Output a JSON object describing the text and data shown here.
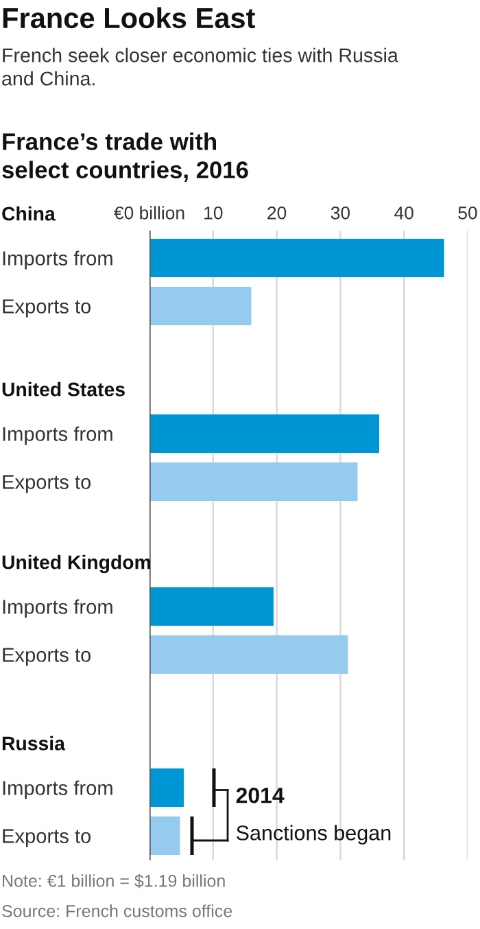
{
  "chart_data": [
    {
      "type": "bar",
      "orientation": "horizontal",
      "title": "China",
      "categories": [
        "Imports from",
        "Exports to"
      ],
      "values": [
        46.3,
        16.0
      ],
      "colors": [
        "#0096d6",
        "#95cbee"
      ],
      "xlim": [
        0,
        50
      ],
      "xticks": [
        {
          "value": 0,
          "label": "€0 billion"
        },
        10,
        20,
        30,
        40,
        50
      ],
      "grid": "x",
      "annotations": [
        "France Looks East",
        "French seek closer economic ties with Russia\nand China.",
        "France’s trade with\nselect countries, 2016"
      ]
    },
    {
      "type": "bar",
      "orientation": "horizontal",
      "title": "United States",
      "categories": [
        "Imports from",
        "Exports to"
      ],
      "values": [
        36.1,
        32.7
      ],
      "colors": [
        "#0096d6",
        "#95cbee"
      ],
      "xlim": [
        0,
        50
      ],
      "xticks": [
        0,
        10,
        20,
        30,
        40,
        50
      ],
      "grid": "x",
      "tick_labels": "y"
    },
    {
      "type": "bar",
      "orientation": "horizontal",
      "title": "United Kingdom",
      "categories": [
        "Imports from",
        "Exports to"
      ],
      "values": [
        19.5,
        31.2
      ],
      "colors": [
        "#0096d6",
        "#95cbee"
      ],
      "xlim": [
        0,
        50
      ],
      "xticks": [
        0,
        10,
        20,
        30,
        40,
        50
      ],
      "grid": "x",
      "tick_labels": "y"
    },
    {
      "type": "bar",
      "orientation": "horizontal",
      "title": "Russia",
      "categories": [
        "Imports from",
        "Exports to"
      ],
      "values": [
        5.4,
        4.8
      ],
      "colors": [
        "#0096d6",
        "#95cbee"
      ],
      "xlim": [
        0,
        50
      ],
      "xticks": [
        0,
        10,
        20,
        30,
        40,
        50
      ],
      "grid": "x",
      "tick_labels": "y",
      "annotations": [
        "2014",
        "Sanctions began",
        "Note: €1 billion = $1.19 billion",
        "Source: French customs office"
      ]
    }
  ]
}
